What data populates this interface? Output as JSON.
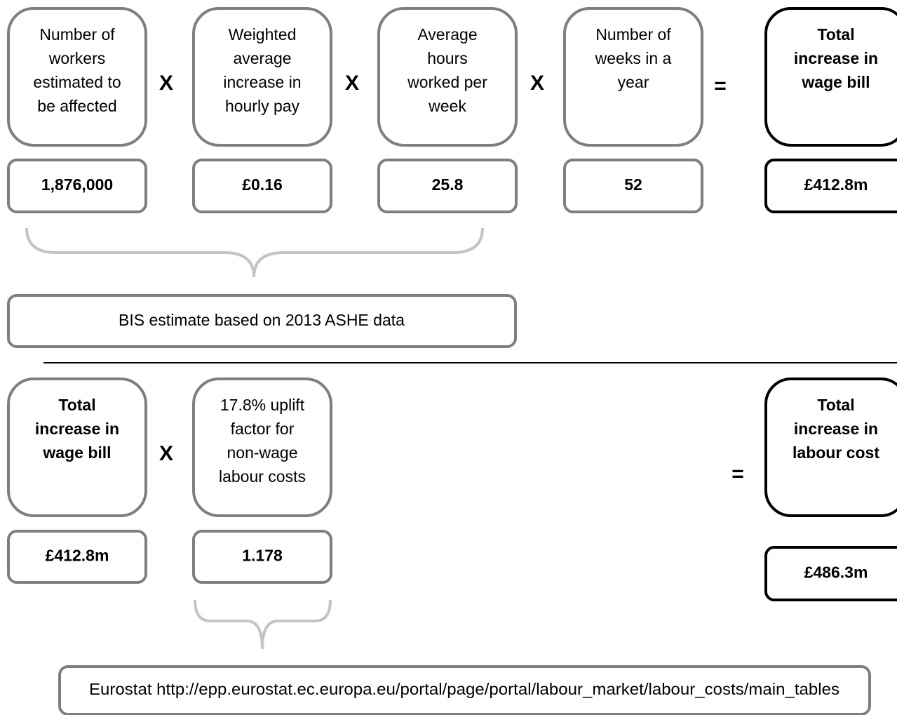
{
  "top": {
    "boxes": [
      {
        "label": [
          "Number of",
          "workers",
          "estimated to",
          "be affected"
        ],
        "value": "1,876,000"
      },
      {
        "label": [
          "Weighted",
          "average",
          "increase in",
          "hourly pay"
        ],
        "value": "£0.16"
      },
      {
        "label": [
          "Average",
          "hours",
          "worked per",
          "week"
        ],
        "value": "25.8"
      },
      {
        "label": [
          "Number of",
          "weeks in a",
          "year"
        ],
        "value": "52"
      }
    ],
    "operators": [
      "X",
      "X",
      "X",
      "="
    ],
    "result": {
      "label": [
        "Total",
        "increase in",
        "wage bill"
      ],
      "value": "£412.8m"
    },
    "source": "BIS estimate based on 2013 ASHE data"
  },
  "bottom": {
    "boxes": [
      {
        "label": [
          "Total",
          "increase in",
          "wage bill"
        ],
        "value": "£412.8m"
      },
      {
        "label": [
          "17.8% uplift",
          "factor for",
          "non-wage",
          "labour costs"
        ],
        "value": "1.178"
      }
    ],
    "operators": [
      "X",
      "="
    ],
    "result": {
      "label": [
        "Total",
        "increase in",
        "labour cost"
      ],
      "value": "£486.3m"
    },
    "source": "Eurostat http://epp.eurostat.ec.europa.eu/portal/page/portal/labour_market/labour_costs/main_tables"
  }
}
